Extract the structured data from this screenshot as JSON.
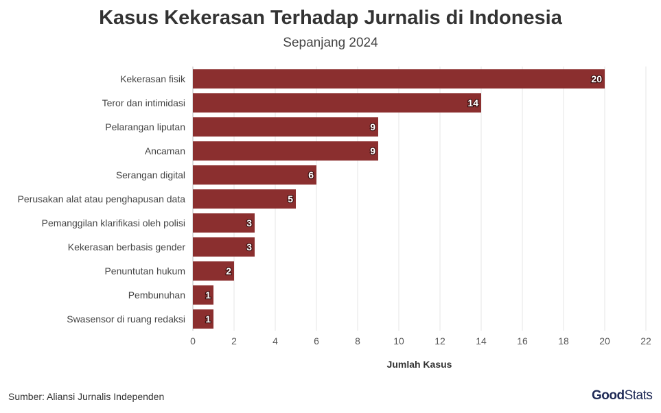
{
  "chart_data": {
    "type": "bar",
    "orientation": "horizontal",
    "title": "Kasus Kekerasan Terhadap Jurnalis di Indonesia",
    "subtitle": "Sepanjang 2024",
    "xlabel": "Jumlah Kasus",
    "ylabel": "",
    "categories": [
      "Kekerasan fisik",
      "Teror dan intimidasi",
      "Pelarangan liputan",
      "Ancaman",
      "Serangan digital",
      "Perusakan alat atau penghapusan data",
      "Pemanggilan klarifikasi oleh polisi",
      "Kekerasan berbasis gender",
      "Penuntutan hukum",
      "Pembunuhan",
      "Swasensor di ruang redaksi"
    ],
    "values": [
      20,
      14,
      9,
      9,
      6,
      5,
      3,
      3,
      2,
      1,
      1
    ],
    "xlim": [
      0,
      22
    ],
    "xticks": [
      0,
      2,
      4,
      6,
      8,
      10,
      12,
      14,
      16,
      18,
      20,
      22
    ],
    "grid": true,
    "legend": "none",
    "bar_color": "#8b2f2f",
    "source": "Sumber: Aliansi Jurnalis Independen"
  },
  "brand": {
    "logo_good": "Good",
    "logo_stats": "Stats"
  }
}
